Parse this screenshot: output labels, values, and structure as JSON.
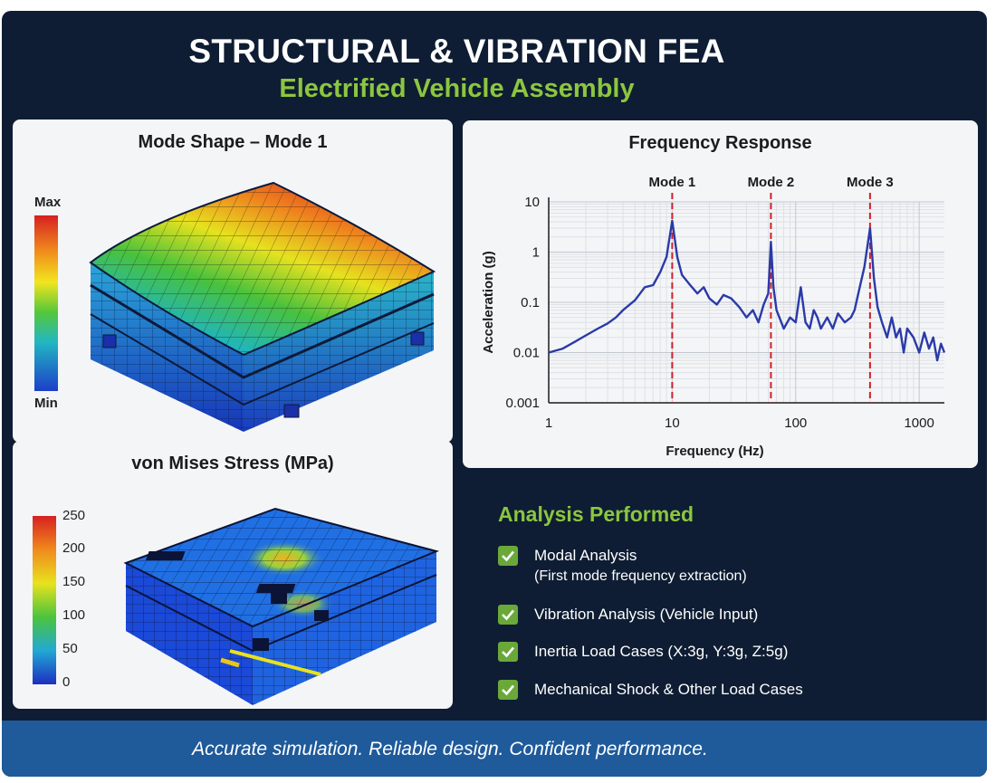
{
  "header": {
    "title": "STRUCTURAL & VIBRATION FEA",
    "subtitle": "Electrified Vehicle Assembly"
  },
  "mode_shape": {
    "title": "Mode Shape – Mode 1",
    "colorbar_max": "Max",
    "colorbar_min": "Min"
  },
  "stress": {
    "title": "von Mises Stress (MPa)",
    "ticks": [
      "250",
      "200",
      "150",
      "100",
      "50",
      "0"
    ]
  },
  "frequency_response": {
    "title": "Frequency Response",
    "xlabel": "Frequency (Hz)",
    "ylabel": "Acceleration (g)",
    "x_ticks": [
      "1",
      "10",
      "100",
      "1000"
    ],
    "y_ticks": [
      "10",
      "1",
      "0.1",
      "0.01",
      "0.001"
    ],
    "modes": [
      {
        "label": "Mode 1",
        "freq": 10
      },
      {
        "label": "Mode 2",
        "freq": 63
      },
      {
        "label": "Mode 3",
        "freq": 400
      }
    ]
  },
  "chart_data": {
    "type": "line",
    "title": "Frequency Response",
    "xlabel": "Frequency (Hz)",
    "ylabel": "Acceleration (g)",
    "x_scale": "log",
    "y_scale": "log",
    "xlim": [
      1,
      1600
    ],
    "ylim": [
      0.001,
      10
    ],
    "grid": true,
    "x": [
      1,
      1.3,
      1.6,
      2,
      2.5,
      3,
      3.5,
      4,
      5,
      6,
      7,
      8,
      9,
      10,
      11,
      12,
      14,
      16,
      18,
      20,
      23,
      26,
      30,
      35,
      40,
      45,
      50,
      55,
      60,
      63,
      66,
      70,
      80,
      90,
      100,
      110,
      120,
      130,
      140,
      150,
      160,
      180,
      200,
      220,
      250,
      280,
      300,
      330,
      360,
      400,
      430,
      460,
      500,
      550,
      600,
      650,
      700,
      750,
      800,
      900,
      1000,
      1100,
      1200,
      1300,
      1400,
      1500,
      1600
    ],
    "y": [
      0.01,
      0.012,
      0.016,
      0.022,
      0.03,
      0.038,
      0.05,
      0.07,
      0.11,
      0.2,
      0.22,
      0.4,
      0.8,
      4.2,
      0.8,
      0.35,
      0.22,
      0.15,
      0.2,
      0.12,
      0.09,
      0.14,
      0.12,
      0.08,
      0.05,
      0.07,
      0.04,
      0.09,
      0.15,
      1.6,
      0.2,
      0.07,
      0.03,
      0.05,
      0.04,
      0.2,
      0.04,
      0.03,
      0.07,
      0.05,
      0.03,
      0.05,
      0.03,
      0.06,
      0.04,
      0.05,
      0.07,
      0.2,
      0.5,
      3.0,
      0.3,
      0.08,
      0.04,
      0.02,
      0.05,
      0.02,
      0.03,
      0.01,
      0.03,
      0.02,
      0.01,
      0.025,
      0.012,
      0.02,
      0.007,
      0.015,
      0.01
    ],
    "series": [
      {
        "name": "",
        "color": "#2a3aa8"
      }
    ],
    "markers": [
      {
        "label": "Mode 1",
        "x": 10
      },
      {
        "label": "Mode 2",
        "x": 63
      },
      {
        "label": "Mode 3",
        "x": 400
      }
    ]
  },
  "analysis": {
    "title": "Analysis Performed",
    "items": [
      {
        "label": "Modal Analysis",
        "sub": "(First mode frequency extraction)"
      },
      {
        "label": "Vibration Analysis (Vehicle Input)",
        "sub": ""
      },
      {
        "label": "Inertia Load Cases (X:3g, Y:3g, Z:5g)",
        "sub": ""
      },
      {
        "label": "Mechanical Shock & Other Load Cases",
        "sub": ""
      }
    ]
  },
  "footer": {
    "tagline": "Accurate simulation. Reliable design. Confident performance."
  },
  "colors": {
    "background": "#0e1d33",
    "accent_green": "#8cc63f",
    "footer_blue": "#1f5a9a",
    "curve_blue": "#2a3aa8",
    "mode_red": "#d0202a"
  }
}
